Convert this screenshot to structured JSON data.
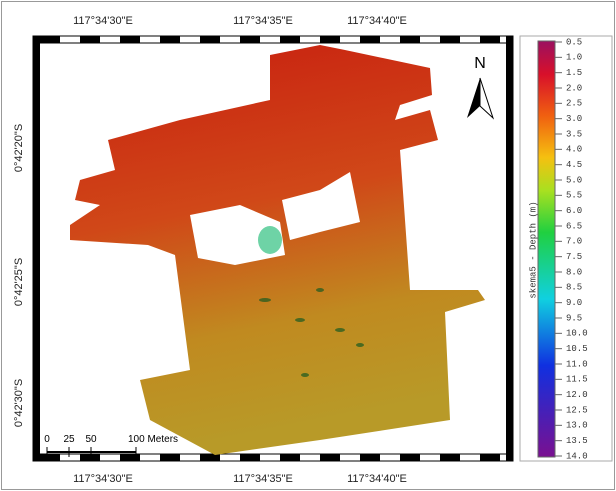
{
  "map": {
    "top_labels": [
      "117°34'30\"E",
      "117°34'35\"E",
      "117°34'40\"E"
    ],
    "bottom_labels": [
      "117°34'30\"E",
      "117°34'35\"E",
      "117°34'40\"E"
    ],
    "left_labels": [
      "0°42'20\"S",
      "0°42'25\"S",
      "0°42'30\"S"
    ],
    "north": "N",
    "scale_bar": [
      "0",
      "25",
      "50",
      "100 Meters"
    ],
    "legend": {
      "title": "skema5 - Depth (m)",
      "ticks": [
        "0.5",
        "1.0",
        "1.5",
        "2.0",
        "2.5",
        "3.0",
        "3.5",
        "4.0",
        "4.5",
        "5.0",
        "5.5",
        "6.0",
        "6.5",
        "7.0",
        "7.5",
        "8.0",
        "8.5",
        "9.0",
        "9.5",
        "10.0",
        "10.5",
        "11.0",
        "11.5",
        "12.0",
        "12.5",
        "13.0",
        "13.5",
        "14.0"
      ]
    }
  }
}
